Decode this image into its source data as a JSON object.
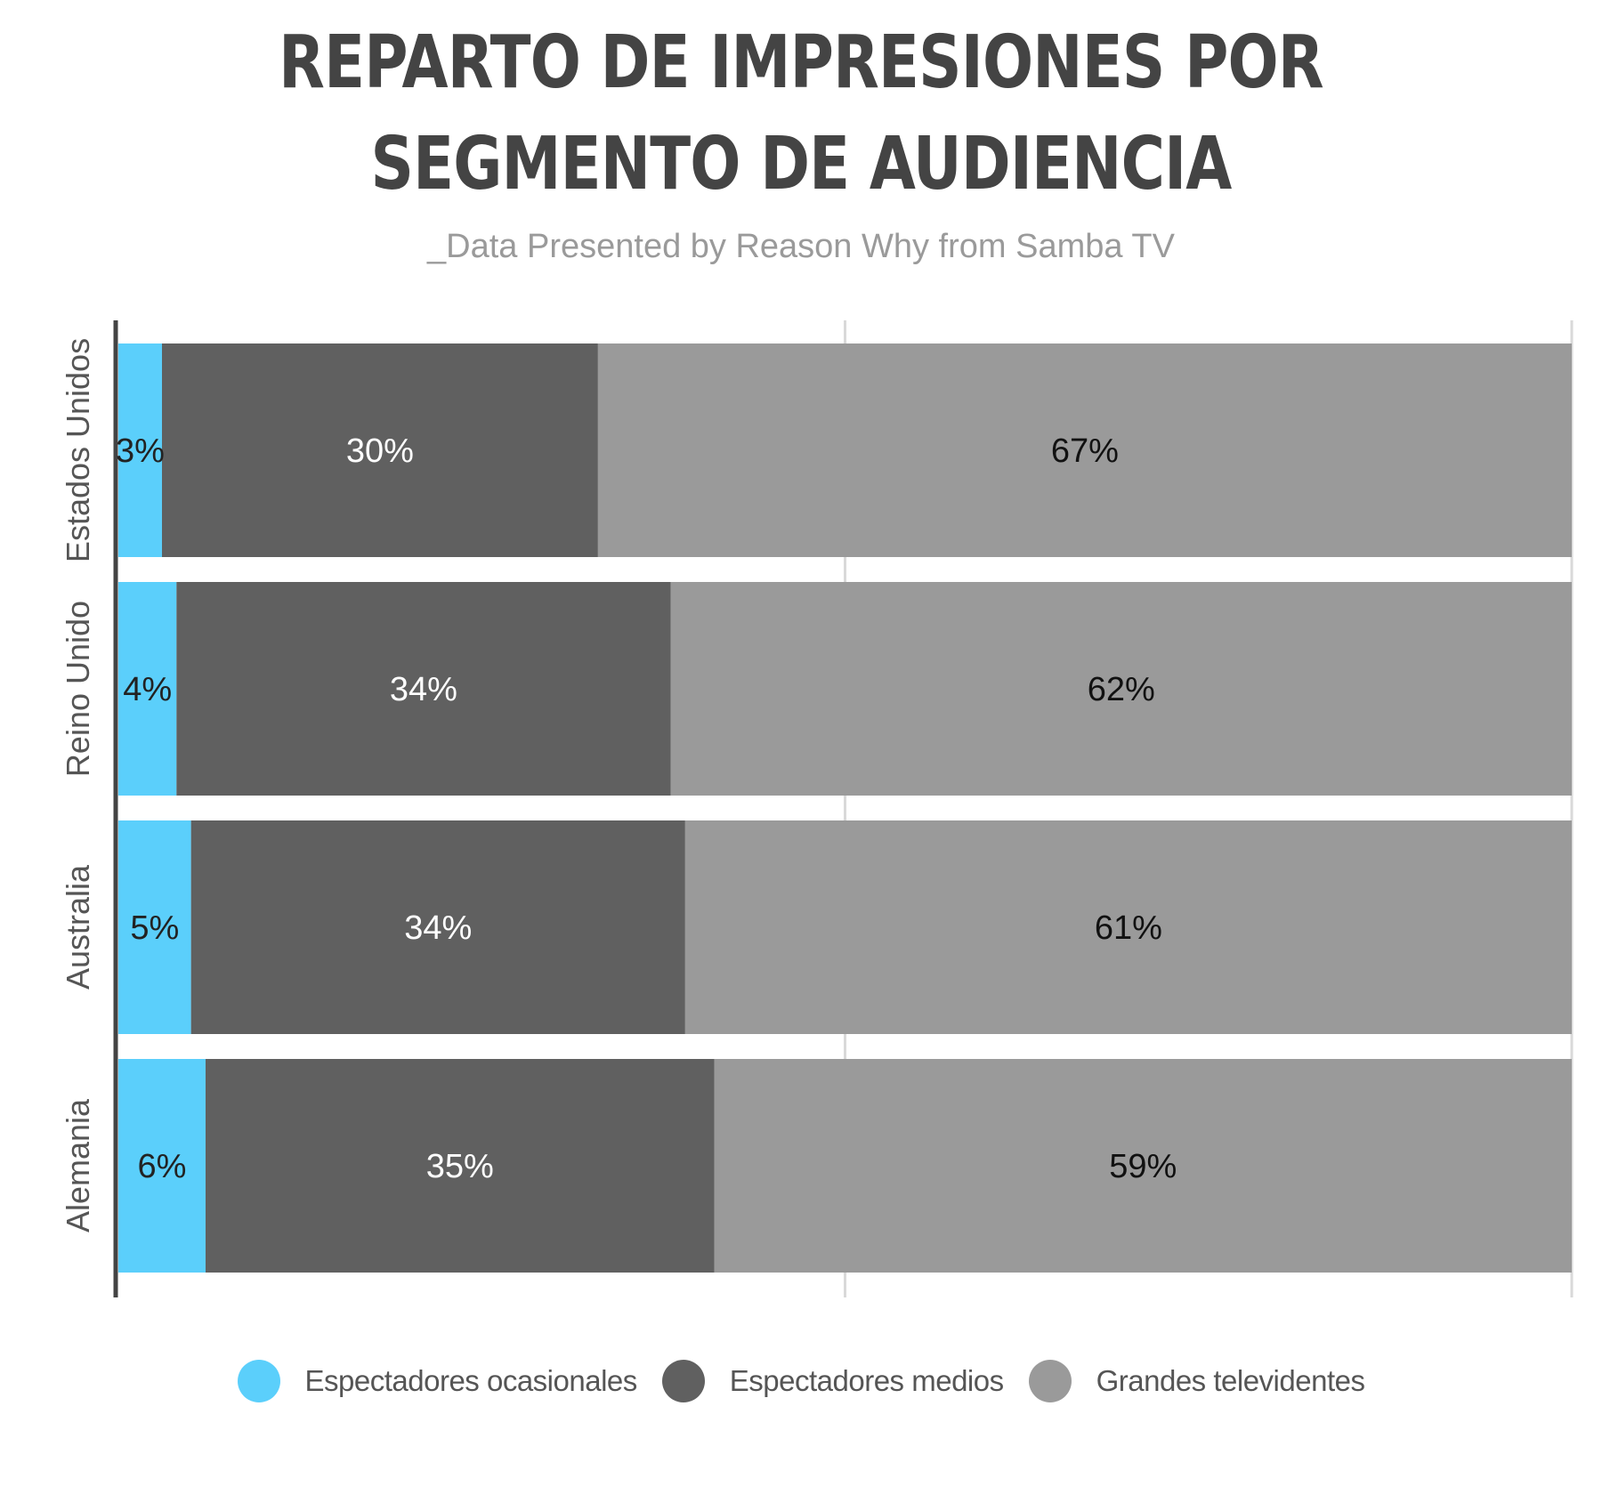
{
  "title": "REPARTO DE IMPRESIONES POR SEGMENTO DE AUDIENCIA",
  "subtitle": "_Data Presented by Reason Why from Samba TV",
  "chart_data": {
    "type": "bar",
    "orientation": "horizontal",
    "stacked": true,
    "categories": [
      "Estados Unidos",
      "Reino Unido",
      "Australia",
      "Alemania"
    ],
    "series": [
      {
        "name": "Espectadores ocasionales",
        "values": [
          3,
          4,
          5,
          6
        ],
        "labels": [
          "3%",
          "4%",
          "5%",
          "6%"
        ],
        "color": "#5bcffb",
        "label_color": "#222222"
      },
      {
        "name": "Espectadores medios",
        "values": [
          30,
          34,
          34,
          35
        ],
        "labels": [
          "30%",
          "34%",
          "34%",
          "35%"
        ],
        "color": "#606060",
        "label_color": "#ffffff"
      },
      {
        "name": "Grandes televidentes",
        "values": [
          67,
          62,
          61,
          59
        ],
        "labels": [
          "67%",
          "62%",
          "61%",
          "59%"
        ],
        "color": "#9a9a9a",
        "label_color": "#111111"
      }
    ],
    "xlim": [
      0,
      100
    ],
    "grid": true,
    "legend_position": "bottom"
  }
}
